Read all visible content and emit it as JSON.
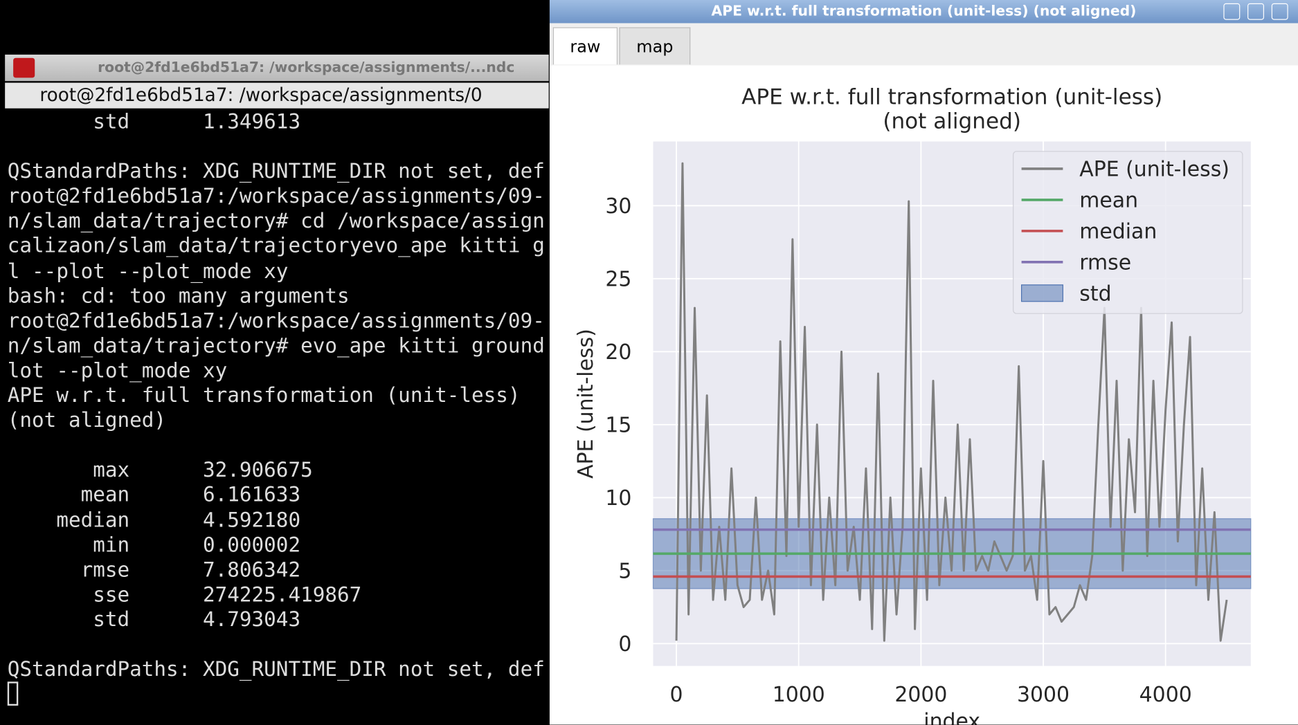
{
  "terminal": {
    "title": "root@2fd1e6bd51a7: /workspace/assignments/...ndc",
    "header": "root@2fd1e6bd51a7: /workspace/assignments/0",
    "blocks": [
      [
        "       std      1.349613"
      ],
      [
        "QStandardPaths: XDG_RUNTIME_DIR not set, def",
        "root@2fd1e6bd51a7:/workspace/assignments/09-",
        "n/slam_data/trajectory# cd /workspace/assign",
        "calizaon/slam_data/trajectoryevo_ape kitti g",
        "l --plot --plot_mode xy",
        "bash: cd: too many arguments",
        "root@2fd1e6bd51a7:/workspace/assignments/09-",
        "n/slam_data/trajectory# evo_ape kitti ground",
        "lot --plot_mode xy",
        "APE w.r.t. full transformation (unit-less)",
        "(not aligned)"
      ],
      [
        "       max      32.906675",
        "      mean      6.161633",
        "    median      4.592180",
        "       min      0.000002",
        "      rmse      7.806342",
        "       sse      274225.419867",
        "       std      4.793043"
      ],
      [
        "QStandardPaths: XDG_RUNTIME_DIR not set, def"
      ]
    ]
  },
  "window": {
    "title": "APE w.r.t. full transformation (unit-less) (not aligned)",
    "tabs": [
      "raw",
      "map"
    ]
  },
  "chart_data": {
    "type": "line",
    "title": [
      "APE w.r.t. full transformation (unit-less)",
      "(not aligned)"
    ],
    "xlabel": "index",
    "ylabel": "APE (unit-less)",
    "x": [
      0,
      50,
      100,
      150,
      200,
      250,
      300,
      350,
      400,
      450,
      500,
      550,
      600,
      650,
      700,
      750,
      800,
      850,
      900,
      950,
      1000,
      1050,
      1100,
      1150,
      1200,
      1250,
      1300,
      1350,
      1400,
      1450,
      1500,
      1550,
      1600,
      1650,
      1700,
      1750,
      1800,
      1850,
      1900,
      1950,
      2000,
      2050,
      2100,
      2150,
      2200,
      2250,
      2300,
      2350,
      2400,
      2450,
      2500,
      2550,
      2600,
      2650,
      2700,
      2750,
      2800,
      2850,
      2900,
      2950,
      3000,
      3050,
      3100,
      3150,
      3200,
      3250,
      3300,
      3350,
      3400,
      3450,
      3500,
      3550,
      3600,
      3650,
      3700,
      3750,
      3800,
      3850,
      3900,
      3950,
      4000,
      4050,
      4100,
      4150,
      4200,
      4250,
      4300,
      4350,
      4400,
      4450,
      4500
    ],
    "series": [
      {
        "name": "APE (unit-less)",
        "color": "#808080",
        "values": [
          0.2,
          32.9,
          2,
          23,
          5,
          17,
          3,
          8,
          3,
          12,
          4,
          2.5,
          3,
          10,
          3,
          5,
          2,
          20.7,
          6,
          27.7,
          8,
          21.7,
          4,
          15,
          3,
          10,
          4,
          20,
          5,
          8,
          3,
          12,
          1,
          18.5,
          0.2,
          10,
          2,
          8,
          30.3,
          1,
          12,
          3,
          18,
          4,
          10,
          5,
          15,
          5,
          14,
          5,
          6,
          5,
          7,
          6,
          5,
          6,
          19,
          5,
          6,
          3,
          12.5,
          2,
          2.5,
          1.5,
          2,
          2.5,
          4,
          3,
          6,
          15,
          23,
          8,
          18,
          5,
          14,
          9,
          23,
          6,
          18,
          8,
          16,
          22,
          7,
          15,
          21,
          4,
          12,
          3,
          9,
          0.2,
          3
        ]
      }
    ],
    "stats": [
      {
        "name": "mean",
        "color": "#55a868",
        "value": 6.161633
      },
      {
        "name": "median",
        "color": "#c44e52",
        "value": 4.59218
      },
      {
        "name": "rmse",
        "color": "#8172b2",
        "value": 7.806342
      },
      {
        "name": "std",
        "color": "#4c72b0",
        "value": 4.793043
      }
    ],
    "xlim": [
      -190,
      4697
    ],
    "ylim": [
      -1.53,
      34.4
    ],
    "xticks": [
      0,
      1000,
      2000,
      3000,
      4000
    ],
    "yticks": [
      0,
      5,
      10,
      15,
      20,
      25,
      30
    ],
    "grid": true,
    "legend": "upper right"
  }
}
